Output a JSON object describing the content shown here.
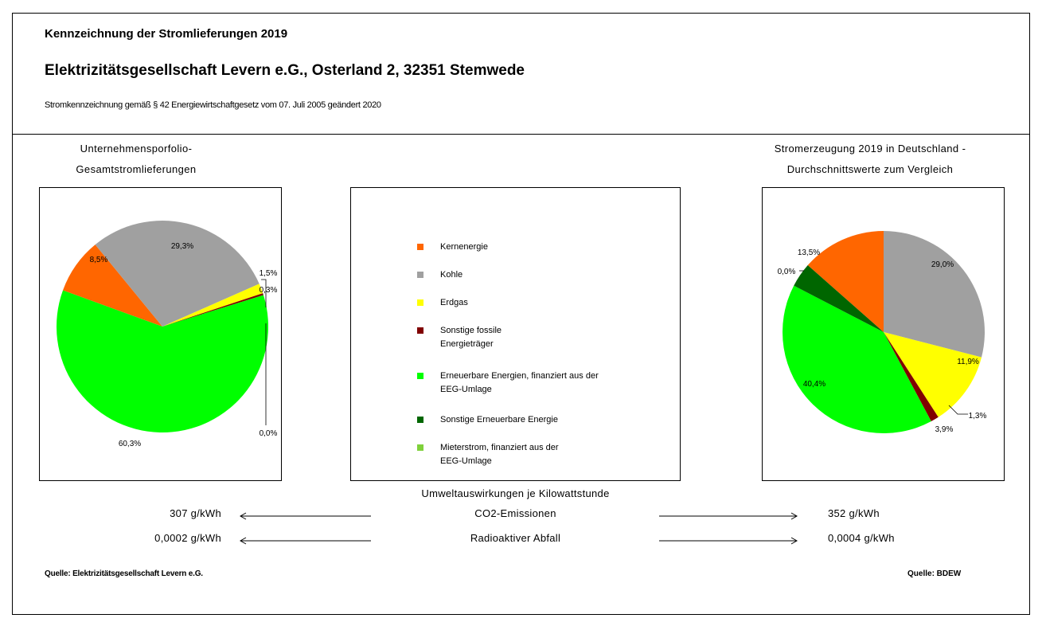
{
  "header": {
    "title": "Kennzeichnung der Stromlieferungen 2019",
    "company": "Elektrizitätsgesellschaft Levern e.G., Osterland 2, 32351 Stemwede",
    "legal": "Stromkennzeichnung gemäß § 42 Energiewirtschaftgesetz vom 07. Juli 2005 geändert 2020"
  },
  "left_caption": [
    "Unternehmensporfolio-",
    "Gesamtstromlieferungen"
  ],
  "right_caption": [
    "Stromerzeugung 2019 in Deutschland -",
    "Durchschnittswerte zum Vergleich"
  ],
  "legend": [
    {
      "lines": [
        "Kernenergie"
      ],
      "color": "#FF6600"
    },
    {
      "lines": [
        "Kohle"
      ],
      "color": "#A0A0A0"
    },
    {
      "lines": [
        "Erdgas"
      ],
      "color": "#FFFF00"
    },
    {
      "lines": [
        "Sonstige fossile",
        "Energieträger"
      ],
      "color": "#800000"
    },
    {
      "lines": [
        "Erneuerbare Energien, finanziert aus der",
        "EEG-Umlage"
      ],
      "color": "#00FF00"
    },
    {
      "lines": [
        "Sonstige Erneuerbare Energie"
      ],
      "color": "#006600"
    },
    {
      "lines": [
        "Mieterstrom, finanziert aus der",
        "EEG-Umlage"
      ],
      "color": "#7FD13B"
    }
  ],
  "chart_data": [
    {
      "type": "pie",
      "title": "Unternehmensporfolio-Gesamtstromlieferungen",
      "labels": [
        "Kernenergie",
        "Kohle",
        "Erdgas",
        "Sonstige fossile Energieträger",
        "Erneuerbare Energien, finanziert aus der EEG-Umlage",
        "Sonstige Erneuerbare Energie",
        "Mieterstrom, finanziert aus der EEG-Umlage"
      ],
      "values": [
        8.5,
        29.3,
        1.5,
        0.3,
        60.3,
        0.0,
        0.0
      ],
      "value_labels": [
        "8,5%",
        "29,3%",
        "1,5%",
        "0,3%",
        "60,3%",
        "0,0%",
        ""
      ]
    },
    {
      "type": "pie",
      "title": "Stromerzeugung 2019 in Deutschland - Durchschnittswerte zum Vergleich",
      "labels": [
        "Kernenergie",
        "Kohle",
        "Erdgas",
        "Sonstige fossile Energieträger",
        "Erneuerbare Energien, finanziert aus der EEG-Umlage",
        "Sonstige Erneuerbare Energie",
        "Mieterstrom, finanziert aus der EEG-Umlage"
      ],
      "values": [
        13.5,
        29.0,
        11.9,
        1.3,
        40.4,
        3.9,
        0.0
      ],
      "value_labels": [
        "13,5%",
        "29,0%",
        "11,9%",
        "1,3%",
        "40,4%",
        "3,9%",
        "0,0%"
      ]
    }
  ],
  "impact": {
    "title": "Umweltauswirkungen je Kilowattstunde",
    "rows": [
      {
        "label": "CO2-Emissionen",
        "left": "307 g/kWh",
        "right": "352 g/kWh"
      },
      {
        "label": "Radioaktiver Abfall",
        "left": "0,0002 g/kWh",
        "right": "0,0004 g/kWh"
      }
    ]
  },
  "sources": {
    "left": "Quelle: Elektrizitätsgesellschaft Levern e.G.",
    "right": "Quelle: BDEW"
  }
}
